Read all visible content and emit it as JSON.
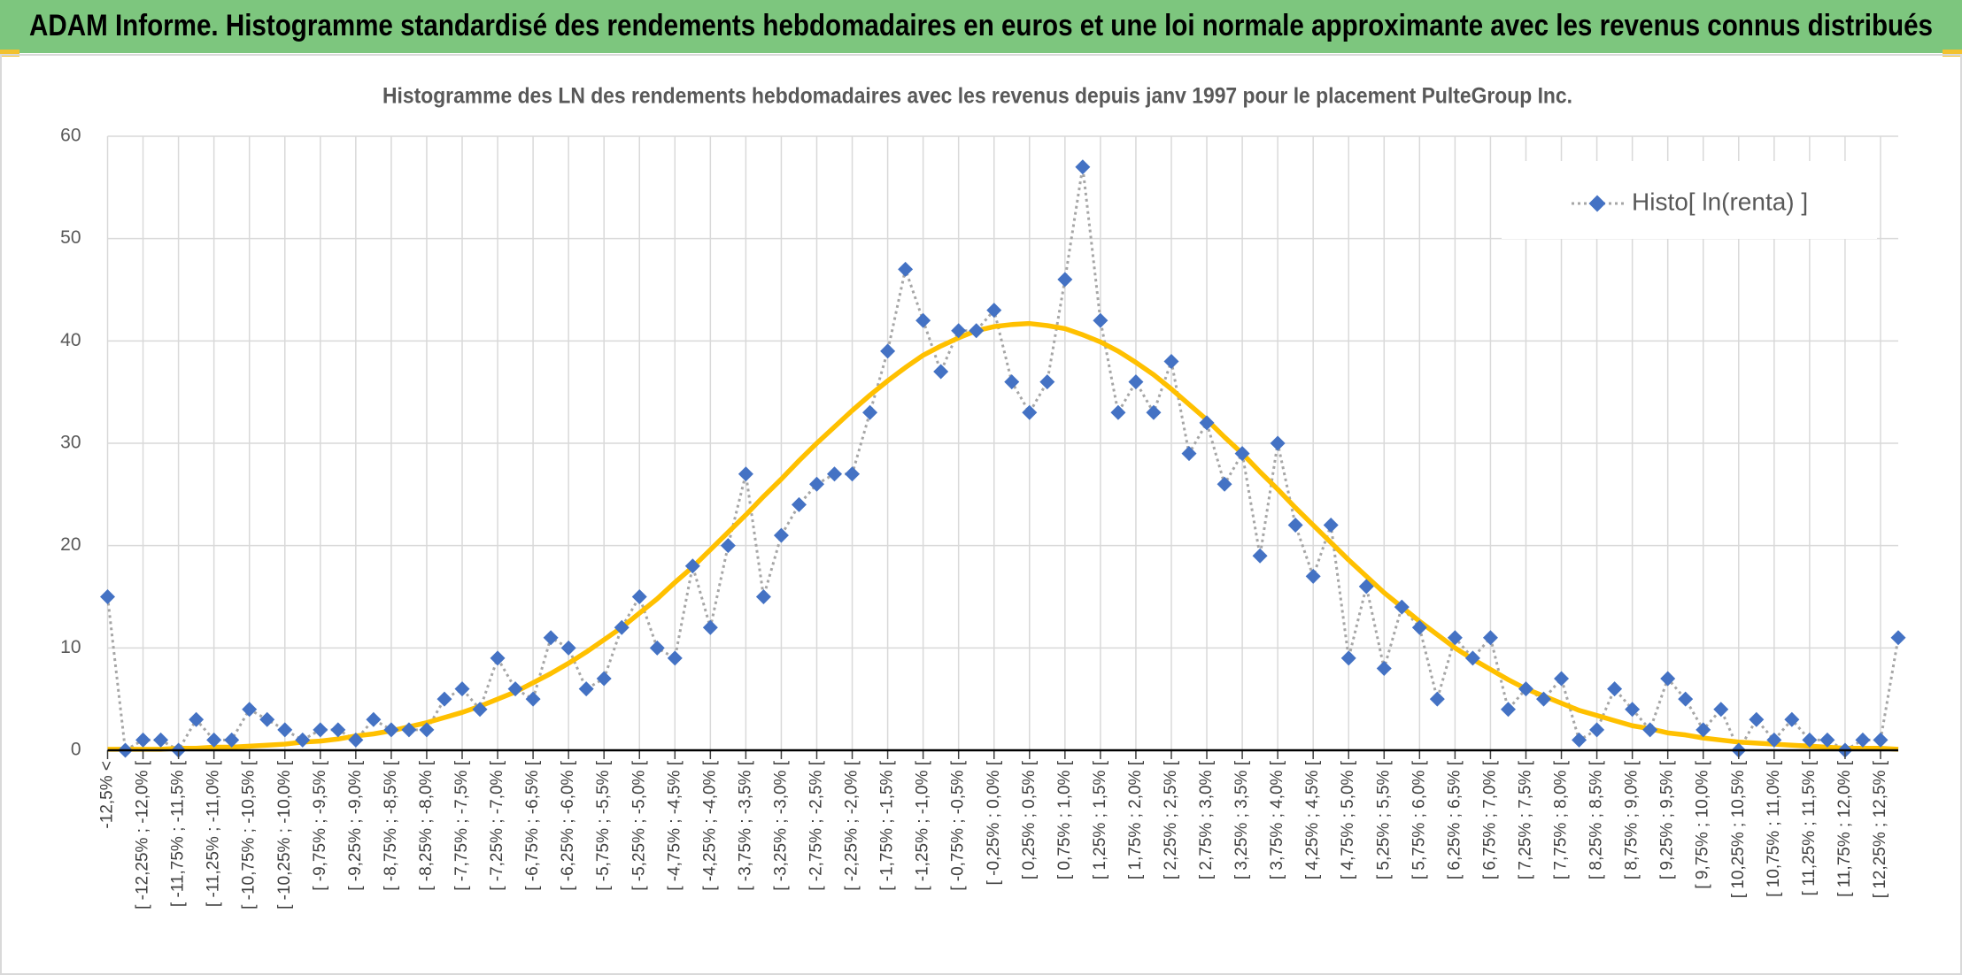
{
  "header": {
    "title": "ADAM Informe. Histogramme standardisé des rendements hebdomadaires en euros et une loi normale approximante avec les revenus connus distribués"
  },
  "chart_data": {
    "type": "line",
    "title": "Histogramme des LN des rendements hebdomadaires avec les revenus depuis janv 1997 pour le placement PulteGroup Inc.",
    "categories": [
      "-12,5% <",
      null,
      "[ -12,25% ; -12,0% [",
      null,
      "[ -11,75% ; -11,5% [",
      null,
      "[ -11,25% ; -11,0% [",
      null,
      "[ -10,75% ; -10,5% [",
      null,
      "[ -10,25% ; -10,0% [",
      null,
      "[ -9,75% ; -9,5% [",
      null,
      "[ -9,25% ; -9,0% [",
      null,
      "[ -8,75% ; -8,5% [",
      null,
      "[ -8,25% ; -8,0% [",
      null,
      "[ -7,75% ; -7,5% [",
      null,
      "[ -7,25% ; -7,0% [",
      null,
      "[ -6,75% ; -6,5% [",
      null,
      "[ -6,25% ; -6,0% [",
      null,
      "[ -5,75% ; -5,5% [",
      null,
      "[ -5,25% ; -5,0% [",
      null,
      "[ -4,75% ; -4,5% [",
      null,
      "[ -4,25% ; -4,0% [",
      null,
      "[ -3,75% ; -3,5% [",
      null,
      "[ -3,25% ; -3,0% [",
      null,
      "[ -2,75% ; -2,5% [",
      null,
      "[ -2,25% ; -2,0% [",
      null,
      "[ -1,75% ; -1,5% [",
      null,
      "[ -1,25% ; -1,0% [",
      null,
      "[ -0,75% ; -0,5% [",
      null,
      "[ -0,25% ; 0,0% [",
      null,
      "[ 0,25% ; 0,5% [",
      null,
      "[ 0,75% ; 1,0% [",
      null,
      "[ 1,25% ; 1,5% [",
      null,
      "[ 1,75% ; 2,0% [",
      null,
      "[ 2,25% ; 2,5% [",
      null,
      "[ 2,75% ; 3,0% [",
      null,
      "[ 3,25% ; 3,5% [",
      null,
      "[ 3,75% ; 4,0% [",
      null,
      "[ 4,25% ; 4,5% [",
      null,
      "[ 4,75% ; 5,0% [",
      null,
      "[ 5,25% ; 5,5% [",
      null,
      "[ 5,75% ; 6,0% [",
      null,
      "[ 6,25% ; 6,5% [",
      null,
      "[ 6,75% ; 7,0% [",
      null,
      "[ 7,25% ; 7,5% [",
      null,
      "[ 7,75% ; 8,0% [",
      null,
      "[ 8,25% ; 8,5% [",
      null,
      "[ 8,75% ; 9,0% [",
      null,
      "[ 9,25% ; 9,5% [",
      null,
      "[ 9,75% ; 10,0% [",
      null,
      "[ 10,25% ; 10,5% [",
      null,
      "[ 10,75% ; 11,0% [",
      null,
      "[ 11,25% ; 11,5% [",
      null,
      "[ 11,75% ; 12,0% [",
      null,
      "[ 12,25% ; 12,5% [",
      null
    ],
    "series": [
      {
        "name": "Histo[ ln(renta) ]",
        "color": "#4472c4",
        "values": [
          15,
          0,
          1,
          1,
          0,
          3,
          1,
          1,
          4,
          3,
          2,
          1,
          2,
          2,
          1,
          3,
          2,
          2,
          2,
          5,
          6,
          4,
          9,
          6,
          5,
          11,
          10,
          6,
          7,
          12,
          15,
          10,
          9,
          18,
          12,
          20,
          27,
          15,
          21,
          24,
          26,
          27,
          27,
          33,
          39,
          47,
          42,
          37,
          41,
          41,
          43,
          36,
          33,
          36,
          46,
          57,
          42,
          33,
          36,
          33,
          38,
          29,
          32,
          26,
          29,
          19,
          30,
          22,
          17,
          22,
          9,
          16,
          8,
          14,
          12,
          5,
          11,
          9,
          11,
          4,
          6,
          5,
          7,
          1,
          2,
          6,
          4,
          2,
          7,
          5,
          2,
          4,
          0,
          3,
          1,
          3,
          1,
          1,
          0,
          1,
          1,
          11
        ]
      },
      {
        "color": "#ffc000",
        "values": [
          0.1,
          0.1,
          0.1,
          0.1,
          0.2,
          0.2,
          0.3,
          0.3,
          0.4,
          0.5,
          0.6,
          0.8,
          0.9,
          1.1,
          1.4,
          1.6,
          1.9,
          2.3,
          2.7,
          3.2,
          3.7,
          4.3,
          5.0,
          5.7,
          6.6,
          7.5,
          8.5,
          9.6,
          10.8,
          12.0,
          13.4,
          14.8,
          16.4,
          17.9,
          19.6,
          21.3,
          23.0,
          24.8,
          26.5,
          28.3,
          30.0,
          31.6,
          33.2,
          34.7,
          36.1,
          37.4,
          38.6,
          39.5,
          40.3,
          41.0,
          41.4,
          41.6,
          41.7,
          41.5,
          41.2,
          40.6,
          39.9,
          39.0,
          37.9,
          36.7,
          35.3,
          33.8,
          32.3,
          30.6,
          29.0,
          27.2,
          25.5,
          23.7,
          22.0,
          20.3,
          18.6,
          17.0,
          15.4,
          14.0,
          12.6,
          11.3,
          10.0,
          8.9,
          7.9,
          6.9,
          6.0,
          5.3,
          4.6,
          3.9,
          3.4,
          2.9,
          2.4,
          2.1,
          1.7,
          1.5,
          1.2,
          1.0,
          0.8,
          0.7,
          0.6,
          0.5,
          0.4,
          0.3,
          0.2,
          0.2,
          0.2,
          0.1
        ]
      }
    ],
    "ylim": [
      0,
      60
    ],
    "yticks": [
      0,
      10,
      20,
      30,
      40,
      50,
      60
    ],
    "grid": true,
    "legend": "upper right"
  }
}
